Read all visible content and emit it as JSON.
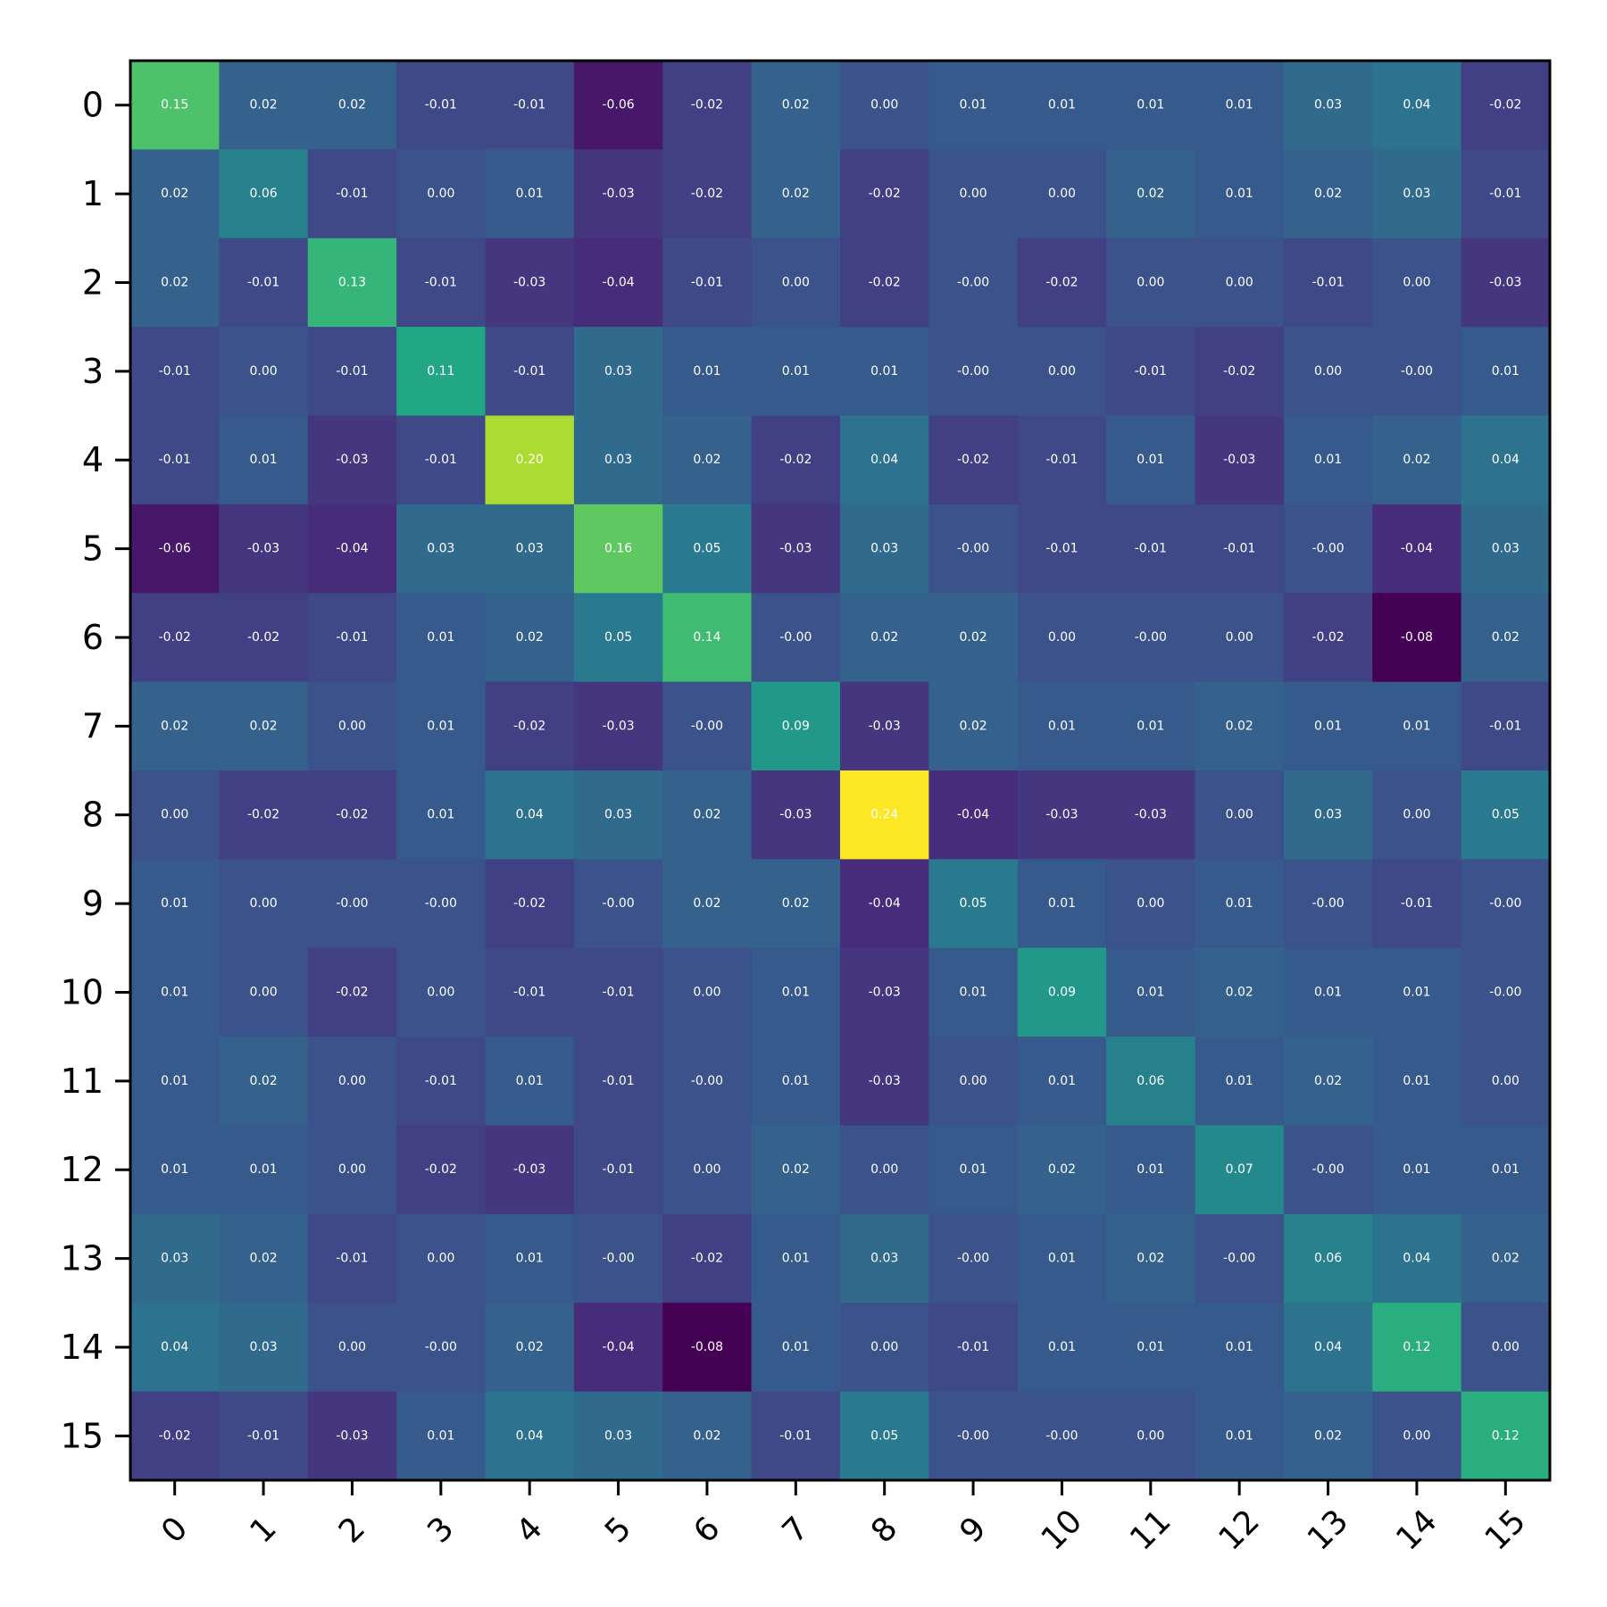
{
  "chart_data": {
    "type": "heatmap",
    "colormap": "viridis",
    "vmin": -0.08,
    "vmax": 0.24,
    "annotation_color": "#ffffff",
    "grid": false,
    "x_tick_labels": [
      "0",
      "1",
      "2",
      "3",
      "4",
      "5",
      "6",
      "7",
      "8",
      "9",
      "10",
      "11",
      "12",
      "13",
      "14",
      "15"
    ],
    "y_tick_labels": [
      "0",
      "1",
      "2",
      "3",
      "4",
      "5",
      "6",
      "7",
      "8",
      "9",
      "10",
      "11",
      "12",
      "13",
      "14",
      "15"
    ],
    "values": [
      [
        0.15,
        0.02,
        0.02,
        -0.01,
        -0.01,
        -0.06,
        -0.02,
        0.02,
        0.0,
        0.01,
        0.01,
        0.01,
        0.01,
        0.03,
        0.04,
        -0.02
      ],
      [
        0.02,
        0.06,
        -0.01,
        0.0,
        0.01,
        -0.03,
        -0.02,
        0.02,
        -0.02,
        0.0,
        0.0,
        0.02,
        0.01,
        0.02,
        0.03,
        -0.01
      ],
      [
        0.02,
        -0.01,
        0.13,
        -0.01,
        -0.03,
        -0.04,
        -0.01,
        0.0,
        -0.02,
        -0.0,
        -0.02,
        0.0,
        0.0,
        -0.01,
        0.0,
        -0.03
      ],
      [
        -0.01,
        0.0,
        -0.01,
        0.11,
        -0.01,
        0.03,
        0.01,
        0.01,
        0.01,
        -0.0,
        0.0,
        -0.01,
        -0.02,
        0.0,
        -0.0,
        0.01
      ],
      [
        -0.01,
        0.01,
        -0.03,
        -0.01,
        0.2,
        0.03,
        0.02,
        -0.02,
        0.04,
        -0.02,
        -0.01,
        0.01,
        -0.03,
        0.01,
        0.02,
        0.04
      ],
      [
        -0.06,
        -0.03,
        -0.04,
        0.03,
        0.03,
        0.16,
        0.05,
        -0.03,
        0.03,
        -0.0,
        -0.01,
        -0.01,
        -0.01,
        -0.0,
        -0.04,
        0.03
      ],
      [
        -0.02,
        -0.02,
        -0.01,
        0.01,
        0.02,
        0.05,
        0.14,
        -0.0,
        0.02,
        0.02,
        0.0,
        -0.0,
        0.0,
        -0.02,
        -0.08,
        0.02
      ],
      [
        0.02,
        0.02,
        0.0,
        0.01,
        -0.02,
        -0.03,
        -0.0,
        0.09,
        -0.03,
        0.02,
        0.01,
        0.01,
        0.02,
        0.01,
        0.01,
        -0.01
      ],
      [
        0.0,
        -0.02,
        -0.02,
        0.01,
        0.04,
        0.03,
        0.02,
        -0.03,
        0.24,
        -0.04,
        -0.03,
        -0.03,
        0.0,
        0.03,
        0.0,
        0.05
      ],
      [
        0.01,
        0.0,
        -0.0,
        -0.0,
        -0.02,
        -0.0,
        0.02,
        0.02,
        -0.04,
        0.05,
        0.01,
        0.0,
        0.01,
        -0.0,
        -0.01,
        -0.0
      ],
      [
        0.01,
        0.0,
        -0.02,
        0.0,
        -0.01,
        -0.01,
        0.0,
        0.01,
        -0.03,
        0.01,
        0.09,
        0.01,
        0.02,
        0.01,
        0.01,
        -0.0
      ],
      [
        0.01,
        0.02,
        0.0,
        -0.01,
        0.01,
        -0.01,
        -0.0,
        0.01,
        -0.03,
        0.0,
        0.01,
        0.06,
        0.01,
        0.02,
        0.01,
        0.0
      ],
      [
        0.01,
        0.01,
        0.0,
        -0.02,
        -0.03,
        -0.01,
        0.0,
        0.02,
        0.0,
        0.01,
        0.02,
        0.01,
        0.07,
        -0.0,
        0.01,
        0.01
      ],
      [
        0.03,
        0.02,
        -0.01,
        0.0,
        0.01,
        -0.0,
        -0.02,
        0.01,
        0.03,
        -0.0,
        0.01,
        0.02,
        -0.0,
        0.06,
        0.04,
        0.02
      ],
      [
        0.04,
        0.03,
        0.0,
        -0.0,
        0.02,
        -0.04,
        -0.08,
        0.01,
        0.0,
        -0.01,
        0.01,
        0.01,
        0.01,
        0.04,
        0.12,
        0.0
      ],
      [
        -0.02,
        -0.01,
        -0.03,
        0.01,
        0.04,
        0.03,
        0.02,
        -0.01,
        0.05,
        -0.0,
        -0.0,
        0.0,
        0.01,
        0.02,
        0.0,
        0.12
      ]
    ],
    "cell_labels": [
      [
        "0.15",
        "0.02",
        "0.02",
        "-0.01",
        "-0.01",
        "-0.06",
        "-0.02",
        "0.02",
        "0.00",
        "0.01",
        "0.01",
        "0.01",
        "0.01",
        "0.03",
        "0.04",
        "-0.02"
      ],
      [
        "0.02",
        "0.06",
        "-0.01",
        "0.00",
        "0.01",
        "-0.03",
        "-0.02",
        "0.02",
        "-0.02",
        "0.00",
        "0.00",
        "0.02",
        "0.01",
        "0.02",
        "0.03",
        "-0.01"
      ],
      [
        "0.02",
        "-0.01",
        "0.13",
        "-0.01",
        "-0.03",
        "-0.04",
        "-0.01",
        "0.00",
        "-0.02",
        "-0.00",
        "-0.02",
        "0.00",
        "0.00",
        "-0.01",
        "0.00",
        "-0.03"
      ],
      [
        "-0.01",
        "0.00",
        "-0.01",
        "0.11",
        "-0.01",
        "0.03",
        "0.01",
        "0.01",
        "0.01",
        "-0.00",
        "0.00",
        "-0.01",
        "-0.02",
        "0.00",
        "-0.00",
        "0.01"
      ],
      [
        "-0.01",
        "0.01",
        "-0.03",
        "-0.01",
        "0.20",
        "0.03",
        "0.02",
        "-0.02",
        "0.04",
        "-0.02",
        "-0.01",
        "0.01",
        "-0.03",
        "0.01",
        "0.02",
        "0.04"
      ],
      [
        "-0.06",
        "-0.03",
        "-0.04",
        "0.03",
        "0.03",
        "0.16",
        "0.05",
        "-0.03",
        "0.03",
        "-0.00",
        "-0.01",
        "-0.01",
        "-0.01",
        "-0.00",
        "-0.04",
        "0.03"
      ],
      [
        "-0.02",
        "-0.02",
        "-0.01",
        "0.01",
        "0.02",
        "0.05",
        "0.14",
        "-0.00",
        "0.02",
        "0.02",
        "0.00",
        "-0.00",
        "0.00",
        "-0.02",
        "-0.08",
        "0.02"
      ],
      [
        "0.02",
        "0.02",
        "0.00",
        "0.01",
        "-0.02",
        "-0.03",
        "-0.00",
        "0.09",
        "-0.03",
        "0.02",
        "0.01",
        "0.01",
        "0.02",
        "0.01",
        "0.01",
        "-0.01"
      ],
      [
        "0.00",
        "-0.02",
        "-0.02",
        "0.01",
        "0.04",
        "0.03",
        "0.02",
        "-0.03",
        "0.24",
        "-0.04",
        "-0.03",
        "-0.03",
        "0.00",
        "0.03",
        "0.00",
        "0.05"
      ],
      [
        "0.01",
        "0.00",
        "-0.00",
        "-0.00",
        "-0.02",
        "-0.00",
        "0.02",
        "0.02",
        "-0.04",
        "0.05",
        "0.01",
        "0.00",
        "0.01",
        "-0.00",
        "-0.01",
        "-0.00"
      ],
      [
        "0.01",
        "0.00",
        "-0.02",
        "0.00",
        "-0.01",
        "-0.01",
        "0.00",
        "0.01",
        "-0.03",
        "0.01",
        "0.09",
        "0.01",
        "0.02",
        "0.01",
        "0.01",
        "-0.00"
      ],
      [
        "0.01",
        "0.02",
        "0.00",
        "-0.01",
        "0.01",
        "-0.01",
        "-0.00",
        "0.01",
        "-0.03",
        "0.00",
        "0.01",
        "0.06",
        "0.01",
        "0.02",
        "0.01",
        "0.00"
      ],
      [
        "0.01",
        "0.01",
        "0.00",
        "-0.02",
        "-0.03",
        "-0.01",
        "0.00",
        "0.02",
        "0.00",
        "0.01",
        "0.02",
        "0.01",
        "0.07",
        "-0.00",
        "0.01",
        "0.01"
      ],
      [
        "0.03",
        "0.02",
        "-0.01",
        "0.00",
        "0.01",
        "-0.00",
        "-0.02",
        "0.01",
        "0.03",
        "-0.00",
        "0.01",
        "0.02",
        "-0.00",
        "0.06",
        "0.04",
        "0.02"
      ],
      [
        "0.04",
        "0.03",
        "0.00",
        "-0.00",
        "0.02",
        "-0.04",
        "-0.08",
        "0.01",
        "0.00",
        "-0.01",
        "0.01",
        "0.01",
        "0.01",
        "0.04",
        "0.12",
        "0.00"
      ],
      [
        "-0.02",
        "-0.01",
        "-0.03",
        "0.01",
        "0.04",
        "0.03",
        "0.02",
        "-0.01",
        "0.05",
        "-0.00",
        "-0.00",
        "0.00",
        "0.01",
        "0.02",
        "0.00",
        "0.12"
      ]
    ]
  }
}
